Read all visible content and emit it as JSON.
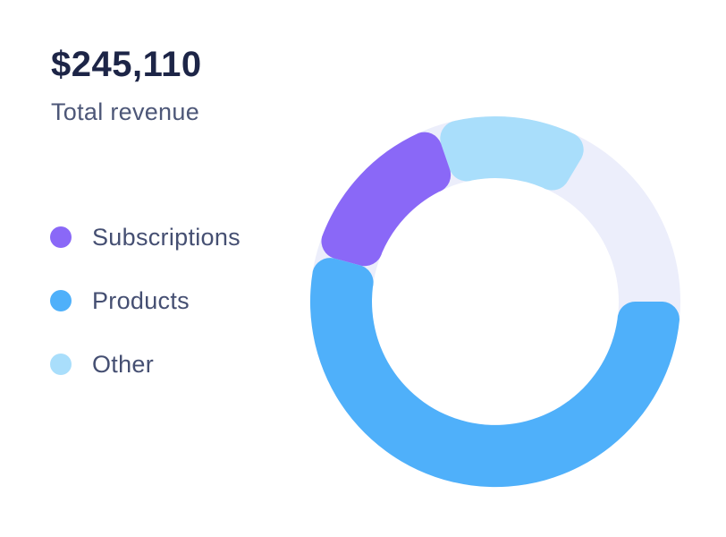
{
  "header": {
    "amount": "$245,110",
    "label": "Total revenue"
  },
  "legend": {
    "items": [
      {
        "label": "Subscriptions",
        "color": "#8a68f7"
      },
      {
        "label": "Products",
        "color": "#4fb0fa"
      },
      {
        "label": "Other",
        "color": "#a9defb"
      }
    ]
  },
  "chart_data": {
    "type": "donut",
    "title": "Total revenue",
    "total_label": "$245,110",
    "legend_position": "left",
    "track_color": "#eceefb",
    "segments": [
      {
        "name": "Subscriptions",
        "color": "#8a68f7",
        "percent": 16,
        "start_angle": 285,
        "end_angle": 341,
        "z": 2
      },
      {
        "name": "Products",
        "color": "#4fb0fa",
        "percent": 54,
        "start_angle": 90,
        "end_angle": 285,
        "z": 3
      },
      {
        "name": "Other",
        "color": "#a9defb",
        "percent": 14,
        "start_angle": 341,
        "end_angle": 391,
        "z": 1
      },
      {
        "name": "Remainder",
        "color": "#eceefb",
        "percent": 16,
        "start_angle": 31,
        "end_angle": 90,
        "z": 0,
        "is_track": true
      }
    ]
  },
  "colors": {
    "background": "#ffffff",
    "amount_text": "#1d2547",
    "subtitle_text": "#4d5778",
    "legend_text": "#454f72"
  }
}
